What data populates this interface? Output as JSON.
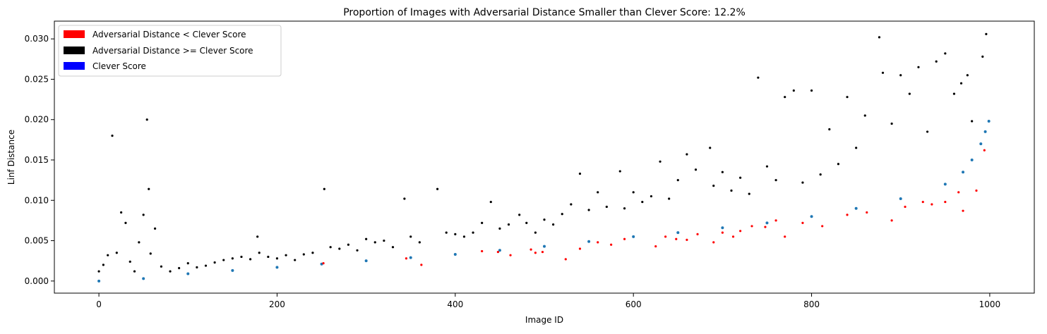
{
  "chart_data": {
    "type": "scatter",
    "title": "Proportion of Images with Adversarial Distance Smaller than Clever Score: 12.2%",
    "xlabel": "Image ID",
    "ylabel": "Linf Distance",
    "xlim": [
      -50,
      1050
    ],
    "ylim": [
      -0.0015,
      0.0322
    ],
    "xticks": [
      0,
      200,
      400,
      600,
      800,
      1000
    ],
    "xtick_labels": [
      "0",
      "200",
      "400",
      "600",
      "800",
      "1000"
    ],
    "yticks": [
      0.0,
      0.005,
      0.01,
      0.015,
      0.02,
      0.025,
      0.03
    ],
    "ytick_labels": [
      "0.000",
      "0.005",
      "0.010",
      "0.015",
      "0.020",
      "0.025",
      "0.030"
    ],
    "grid": false,
    "legend_position": "top-left",
    "legend": [
      {
        "label": "Adversarial Distance < Clever Score",
        "color": "#ff0000"
      },
      {
        "label": "Adversarial Distance >= Clever Score",
        "color": "#000000"
      },
      {
        "label": "Clever Score",
        "color": "#0000ff"
      }
    ],
    "series": [
      {
        "name": "Clever Score",
        "color": "#1f77b4",
        "x": [
          0,
          50,
          100,
          150,
          200,
          250,
          300,
          350,
          400,
          450,
          500,
          550,
          600,
          650,
          700,
          750,
          800,
          850,
          900,
          950,
          970,
          980,
          990,
          995,
          999
        ],
        "y": [
          0.0,
          0.0003,
          0.0009,
          0.0013,
          0.0017,
          0.0021,
          0.0025,
          0.0029,
          0.0033,
          0.0038,
          0.0043,
          0.0049,
          0.0055,
          0.006,
          0.0066,
          0.0072,
          0.008,
          0.009,
          0.0102,
          0.012,
          0.0135,
          0.015,
          0.017,
          0.0185,
          0.0198
        ]
      },
      {
        "name": "Adversarial Distance < Clever Score",
        "color": "#ff0000",
        "x": [
          252,
          345,
          362,
          430,
          448,
          462,
          485,
          490,
          498,
          524,
          540,
          560,
          575,
          590,
          625,
          636,
          648,
          660,
          672,
          690,
          700,
          712,
          720,
          733,
          748,
          760,
          770,
          790,
          812,
          840,
          862,
          890,
          905,
          925,
          935,
          950,
          965,
          970,
          985,
          994
        ],
        "y": [
          0.0022,
          0.0028,
          0.002,
          0.0037,
          0.0036,
          0.0032,
          0.0039,
          0.0035,
          0.0036,
          0.0027,
          0.004,
          0.0048,
          0.0045,
          0.0052,
          0.0043,
          0.0055,
          0.0052,
          0.0051,
          0.0058,
          0.0048,
          0.006,
          0.0055,
          0.0062,
          0.0068,
          0.0067,
          0.0075,
          0.0055,
          0.0072,
          0.0068,
          0.0082,
          0.0085,
          0.0075,
          0.0092,
          0.0098,
          0.0095,
          0.0098,
          0.011,
          0.0087,
          0.0112,
          0.0162
        ]
      },
      {
        "name": "Adversarial Distance >= Clever Score",
        "color": "#000000",
        "x": [
          0,
          5,
          10,
          15,
          20,
          25,
          30,
          35,
          40,
          45,
          50,
          54,
          56,
          58,
          63,
          70,
          80,
          90,
          100,
          110,
          120,
          130,
          140,
          150,
          160,
          170,
          178,
          180,
          190,
          200,
          210,
          220,
          230,
          240,
          253,
          260,
          270,
          280,
          290,
          300,
          310,
          320,
          330,
          343,
          350,
          360,
          380,
          390,
          400,
          410,
          420,
          430,
          440,
          450,
          460,
          472,
          480,
          490,
          500,
          510,
          520,
          530,
          540,
          550,
          560,
          570,
          585,
          590,
          600,
          610,
          620,
          630,
          640,
          650,
          660,
          670,
          686,
          690,
          700,
          710,
          720,
          730,
          740,
          750,
          760,
          770,
          780,
          790,
          800,
          810,
          820,
          830,
          840,
          850,
          860,
          876,
          880,
          890,
          900,
          910,
          920,
          930,
          940,
          950,
          960,
          968,
          975,
          980,
          992,
          996
        ],
        "y": [
          0.0012,
          0.002,
          0.0032,
          0.018,
          0.0035,
          0.0085,
          0.0072,
          0.0024,
          0.0012,
          0.0048,
          0.0082,
          0.02,
          0.0114,
          0.0034,
          0.0065,
          0.0018,
          0.0012,
          0.0016,
          0.0022,
          0.0017,
          0.0019,
          0.0023,
          0.0026,
          0.0028,
          0.003,
          0.0027,
          0.0055,
          0.0035,
          0.003,
          0.0028,
          0.0032,
          0.0026,
          0.0033,
          0.0035,
          0.0114,
          0.0042,
          0.004,
          0.0045,
          0.0038,
          0.0052,
          0.0048,
          0.005,
          0.0042,
          0.0102,
          0.0055,
          0.0048,
          0.0114,
          0.006,
          0.0058,
          0.0055,
          0.006,
          0.0072,
          0.0098,
          0.0065,
          0.007,
          0.0082,
          0.0072,
          0.006,
          0.0076,
          0.007,
          0.0083,
          0.0095,
          0.0133,
          0.0088,
          0.011,
          0.0092,
          0.0136,
          0.009,
          0.011,
          0.0098,
          0.0105,
          0.0148,
          0.0102,
          0.0125,
          0.0157,
          0.0138,
          0.0165,
          0.0118,
          0.0135,
          0.0112,
          0.0128,
          0.0108,
          0.0252,
          0.0142,
          0.0125,
          0.0228,
          0.0236,
          0.0122,
          0.0236,
          0.0132,
          0.0188,
          0.0145,
          0.0228,
          0.0165,
          0.0205,
          0.0302,
          0.0258,
          0.0195,
          0.0255,
          0.0232,
          0.0265,
          0.0185,
          0.0272,
          0.0282,
          0.0232,
          0.0245,
          0.0255,
          0.0198,
          0.0278,
          0.0306
        ]
      }
    ]
  }
}
